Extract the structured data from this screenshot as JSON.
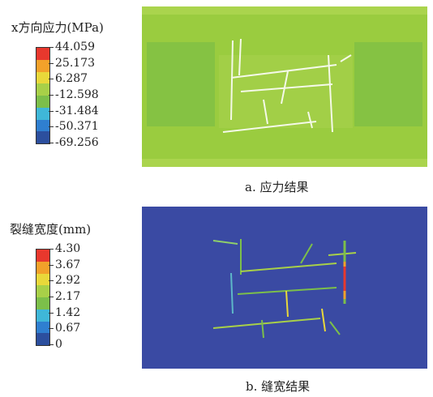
{
  "panel_a": {
    "legend_title": "x方向应力(MPa)",
    "ticks": [
      "44.059",
      "25.173",
      "6.287",
      "-12.598",
      "-31.484",
      "-50.371",
      "-69.256"
    ],
    "colors": [
      "#e8382d",
      "#f2a12a",
      "#e9d83a",
      "#a8d048",
      "#7cbf4a",
      "#3fb7d8",
      "#2f7fd0",
      "#2c4f9e"
    ],
    "field_color": "#9acc3f",
    "caption": "a. 应力结果"
  },
  "panel_b": {
    "legend_title": "裂缝宽度(mm)",
    "ticks": [
      "4.30",
      "3.67",
      "2.92",
      "2.17",
      "1.42",
      "0.67",
      "0"
    ],
    "colors": [
      "#e8382d",
      "#f2a12a",
      "#e9d83a",
      "#a8d048",
      "#7cbf4a",
      "#3fb7d8",
      "#2f7fd0",
      "#2c4f9e"
    ],
    "field_color": "#3a4aa3",
    "caption": "b. 缝宽结果"
  }
}
